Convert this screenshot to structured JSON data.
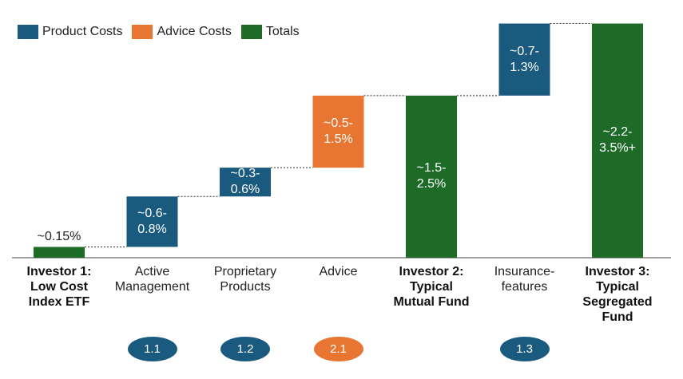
{
  "colors": {
    "product": "#1B5A7F",
    "advice": "#E87632",
    "total": "#1E6B28"
  },
  "legend": [
    {
      "label": "Product Costs",
      "color": "#1B5A7F"
    },
    {
      "label": "Advice Costs",
      "color": "#E87632"
    },
    {
      "label": "Totals",
      "color": "#1E6B28"
    }
  ],
  "chart_data": {
    "type": "waterfall",
    "title": "",
    "ylim": [
      0,
      3.3
    ],
    "categories": [
      "Investor 1:\nLow Cost\nIndex ETF",
      "Active\nManagement",
      "Proprietary\nProducts",
      "Advice",
      "Investor 2:\nTypical\nMutual Fund",
      "Insurance-\nfeatures",
      "Investor 3:\nTypical\nSegregated\nFund"
    ],
    "bars": [
      {
        "kind": "total",
        "bottom": 0,
        "top": 0.15,
        "label": "~0.15%",
        "bold_category": true,
        "badge": ""
      },
      {
        "kind": "product",
        "bottom": 0.15,
        "top": 0.85,
        "label": "~0.6-\n0.8%",
        "bold_category": false,
        "badge": "1.1"
      },
      {
        "kind": "product",
        "bottom": 0.85,
        "top": 1.25,
        "label": "~0.3-\n0.6%",
        "bold_category": false,
        "badge": "1.2"
      },
      {
        "kind": "advice",
        "bottom": 1.25,
        "top": 2.25,
        "label": "~0.5-\n1.5%",
        "bold_category": false,
        "badge": "2.1"
      },
      {
        "kind": "total",
        "bottom": 0,
        "top": 2.25,
        "label": "~1.5-\n2.5%",
        "bold_category": true,
        "badge": ""
      },
      {
        "kind": "product",
        "bottom": 2.25,
        "top": 3.25,
        "label": "~0.7-\n1.3%",
        "bold_category": false,
        "badge": "1.3"
      },
      {
        "kind": "total",
        "bottom": 0,
        "top": 3.25,
        "label": "~2.2-\n3.5%+",
        "bold_category": true,
        "badge": ""
      }
    ]
  }
}
